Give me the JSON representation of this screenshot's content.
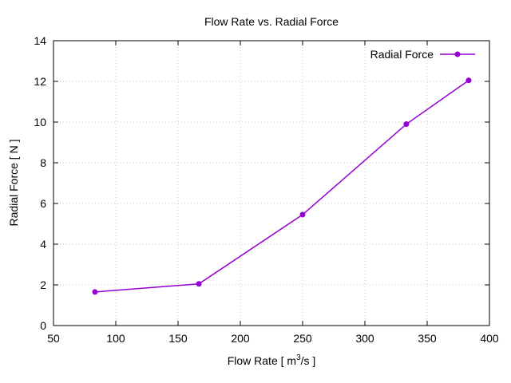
{
  "chart_data": {
    "type": "line",
    "title": "Flow Rate vs. Radial Force",
    "xlabel": {
      "prefix": "Flow Rate [ m",
      "sup": "3",
      "suffix": "/s ]"
    },
    "ylabel": "Radial Force [ N ]",
    "xlim": [
      50,
      400
    ],
    "ylim": [
      0,
      14
    ],
    "xticks": [
      50,
      100,
      150,
      200,
      250,
      300,
      350,
      400
    ],
    "yticks": [
      0,
      2,
      4,
      6,
      8,
      10,
      12,
      14
    ],
    "grid": true,
    "legend_position": "top-right",
    "series": [
      {
        "name": "Radial Force",
        "color": "#9400d3",
        "marker": "circle",
        "x": [
          83.3,
          166.7,
          250,
          333.3,
          383.3
        ],
        "y": [
          1.65,
          2.05,
          5.45,
          9.9,
          12.05
        ]
      }
    ]
  }
}
